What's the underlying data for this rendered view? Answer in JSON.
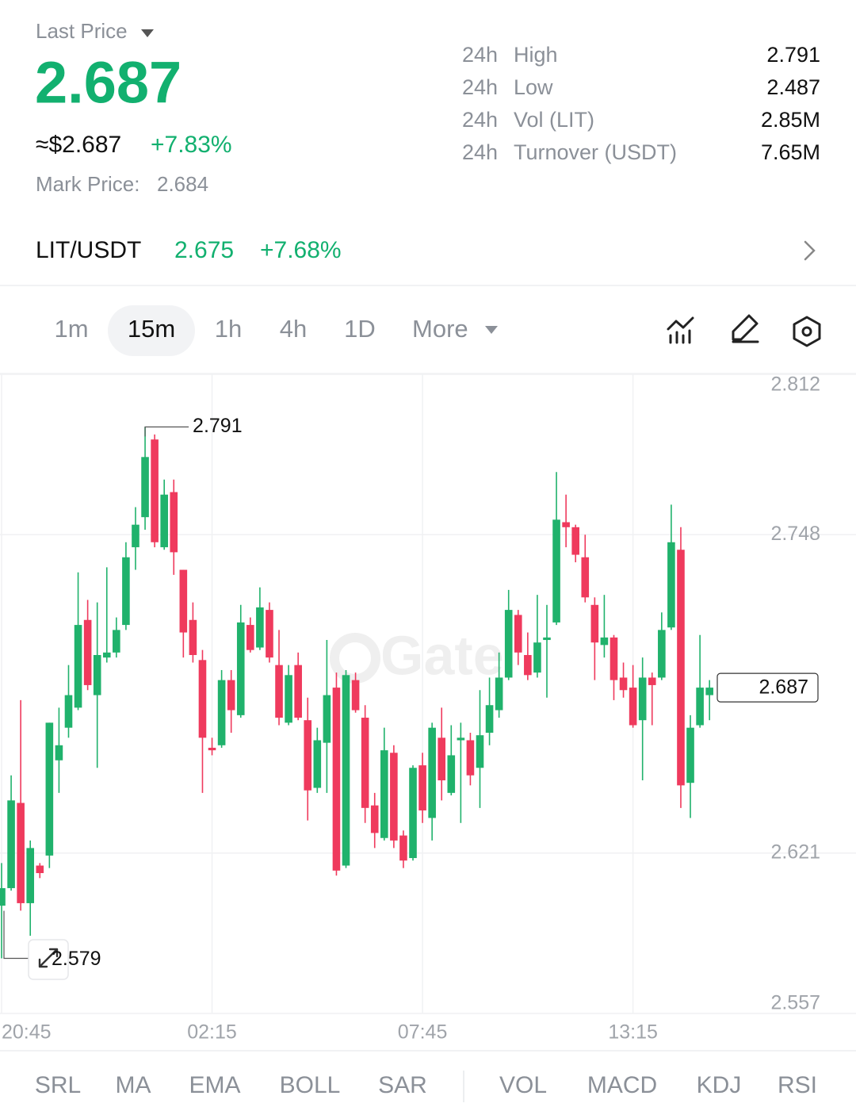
{
  "header": {
    "last_price_label": "Last Price",
    "last_price": "2.687",
    "usd_price": "≈$2.687",
    "change": "+7.83%",
    "mark_price_label": "Mark Price:",
    "mark_price": "2.684",
    "stats": [
      {
        "period": "24h",
        "label": "High",
        "value": "2.791"
      },
      {
        "period": "24h",
        "label": "Low",
        "value": "2.487"
      },
      {
        "period": "24h",
        "label": "Vol (LIT)",
        "value": "2.85M"
      },
      {
        "period": "24h",
        "label": "Turnover (USDT)",
        "value": "7.65M"
      }
    ]
  },
  "spot": {
    "pair": "LIT/USDT",
    "price": "2.675",
    "change": "+7.68%"
  },
  "intervals": [
    "1m",
    "15m",
    "1h",
    "4h",
    "1D",
    "More"
  ],
  "indicators": [
    "SRL",
    "MA",
    "EMA",
    "BOLL",
    "SAR",
    "VOL",
    "MACD",
    "KDJ",
    "RSI"
  ],
  "watermark": "Gate",
  "chart_data": {
    "type": "candlestick",
    "up_color": "#20b26c",
    "down_color": "#ef3a5d",
    "grid": true,
    "categories": [
      "20:45",
      null,
      null,
      null,
      null,
      null,
      null,
      null,
      null,
      null,
      null,
      null,
      null,
      null,
      null,
      null,
      null,
      null,
      null,
      null,
      null,
      null,
      "02:15",
      null,
      null,
      null,
      null,
      null,
      null,
      null,
      null,
      null,
      null,
      null,
      null,
      null,
      null,
      null,
      null,
      null,
      null,
      null,
      null,
      null,
      "07:45",
      null,
      null,
      null,
      null,
      null,
      null,
      null,
      null,
      null,
      null,
      null,
      null,
      null,
      null,
      null,
      null,
      null,
      null,
      null,
      null,
      null,
      "13:15",
      null,
      null,
      null,
      null,
      null,
      null,
      null,
      null
    ],
    "open": [
      2.6,
      2.607,
      2.641,
      2.601,
      2.616,
      2.62,
      2.658,
      2.671,
      2.679,
      2.714,
      2.684,
      2.699,
      2.701,
      2.712,
      2.743,
      2.755,
      2.786,
      2.743,
      2.765,
      2.734,
      2.714,
      2.698,
      2.663,
      2.664,
      2.69,
      2.676,
      2.712,
      2.703,
      2.718,
      2.696,
      2.673,
      2.696,
      2.674,
      2.647,
      2.665,
      2.687,
      2.616,
      2.69,
      2.675,
      2.64,
      2.627,
      2.661,
      2.628,
      2.619,
      2.656,
      2.635,
      2.667,
      2.645,
      2.666,
      2.666,
      2.655,
      2.669,
      2.678,
      2.691,
      2.716,
      2.7,
      2.693,
      2.706,
      2.713,
      2.753,
      2.751,
      2.739,
      2.72,
      2.704,
      2.707,
      2.691,
      2.687,
      2.674,
      2.691,
      2.691,
      2.711,
      2.742,
      2.649,
      2.672,
      2.684
    ],
    "high": [
      2.617,
      2.652,
      2.682,
      2.626,
      2.617,
      2.673,
      2.679,
      2.696,
      2.733,
      2.722,
      2.721,
      2.735,
      2.715,
      2.745,
      2.759,
      2.791,
      2.788,
      2.77,
      2.77,
      2.734,
      2.721,
      2.702,
      2.667,
      2.694,
      2.694,
      2.72,
      2.715,
      2.727,
      2.721,
      2.71,
      2.696,
      2.701,
      2.683,
      2.671,
      2.706,
      2.693,
      2.694,
      2.693,
      2.68,
      2.645,
      2.671,
      2.664,
      2.63,
      2.656,
      2.661,
      2.673,
      2.679,
      2.672,
      2.673,
      2.669,
      2.686,
      2.691,
      2.701,
      2.726,
      2.718,
      2.709,
      2.724,
      2.72,
      2.773,
      2.764,
      2.752,
      2.748,
      2.723,
      2.724,
      2.708,
      2.697,
      2.696,
      2.699,
      2.693,
      2.717,
      2.76,
      2.751,
      2.676,
      2.708,
      2.69
    ],
    "low": [
      2.579,
      2.606,
      2.598,
      2.588,
      2.611,
      2.615,
      2.645,
      2.667,
      2.678,
      2.686,
      2.655,
      2.697,
      2.699,
      2.71,
      2.734,
      2.75,
      2.743,
      2.742,
      2.732,
      2.699,
      2.697,
      2.645,
      2.66,
      2.663,
      2.669,
      2.675,
      2.701,
      2.702,
      2.697,
      2.672,
      2.672,
      2.674,
      2.634,
      2.645,
      2.645,
      2.612,
      2.615,
      2.677,
      2.633,
      2.623,
      2.626,
      2.623,
      2.615,
      2.618,
      2.633,
      2.626,
      2.642,
      2.644,
      2.633,
      2.648,
      2.639,
      2.664,
      2.675,
      2.69,
      2.696,
      2.69,
      2.691,
      2.683,
      2.712,
      2.743,
      2.737,
      2.721,
      2.69,
      2.699,
      2.682,
      2.683,
      2.671,
      2.65,
      2.672,
      2.69,
      2.71,
      2.639,
      2.635,
      2.671,
      2.674
    ],
    "close": [
      2.607,
      2.642,
      2.601,
      2.623,
      2.613,
      2.673,
      2.664,
      2.684,
      2.712,
      2.688,
      2.7,
      2.701,
      2.71,
      2.739,
      2.752,
      2.779,
      2.745,
      2.764,
      2.741,
      2.709,
      2.7,
      2.667,
      2.662,
      2.69,
      2.678,
      2.713,
      2.702,
      2.719,
      2.699,
      2.675,
      2.692,
      2.675,
      2.646,
      2.666,
      2.684,
      2.614,
      2.692,
      2.678,
      2.639,
      2.629,
      2.662,
      2.626,
      2.618,
      2.655,
      2.638,
      2.671,
      2.65,
      2.66,
      2.667,
      2.652,
      2.668,
      2.68,
      2.691,
      2.718,
      2.701,
      2.692,
      2.705,
      2.707,
      2.754,
      2.751,
      2.74,
      2.723,
      2.705,
      2.707,
      2.69,
      2.686,
      2.672,
      2.691,
      2.688,
      2.71,
      2.745,
      2.648,
      2.671,
      2.687,
      2.687
    ],
    "ylim": [
      2.557,
      2.812
    ],
    "yticks": [
      2.812,
      2.748,
      2.621,
      2.557
    ]
  }
}
